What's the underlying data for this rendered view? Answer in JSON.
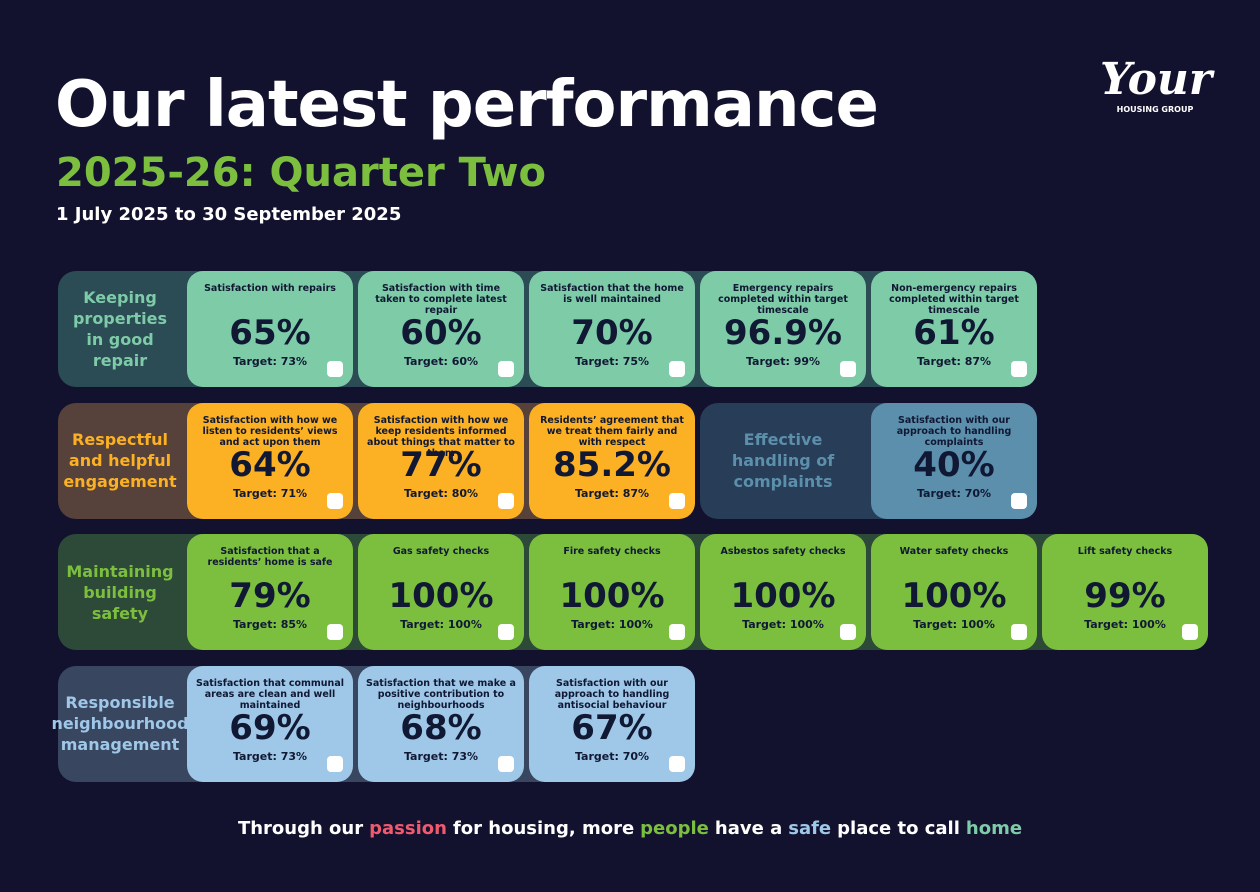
{
  "header": {
    "title": "Our latest performance",
    "subtitle": "2025-26: Quarter Two",
    "period": "1 July 2025 to 30 September 2025"
  },
  "logo": {
    "name": "Your",
    "tagline": "HOUSING GROUP"
  },
  "rows": [
    [
      {
        "label": "Keeping properties in good repair",
        "color": "#7ecba8",
        "panel": "#2b4b55",
        "cards": [
          {
            "title": "Satisfaction with repairs",
            "value": "65%",
            "target": "Target: 73%"
          },
          {
            "title": "Satisfaction with time taken to complete latest repair",
            "value": "60%",
            "target": "Target: 60%"
          },
          {
            "title": "Satisfaction that the home is well maintained",
            "value": "70%",
            "target": "Target: 75%"
          },
          {
            "title": "Emergency repairs completed within target timescale",
            "value": "96.9%",
            "target": "Target: 99%"
          },
          {
            "title": "Non-emergency repairs completed within target timescale",
            "value": "61%",
            "target": "Target: 87%"
          }
        ]
      }
    ],
    [
      {
        "label": "Respectful and helpful engagement",
        "color": "#fbb123",
        "panel": "#56423a",
        "cards": [
          {
            "title": "Satisfaction with how we listen to residents’ views and act upon them",
            "value": "64%",
            "target": "Target: 71%"
          },
          {
            "title": "Satisfaction with how we keep residents informed about things that matter to them",
            "value": "77%",
            "target": "Target: 80%"
          },
          {
            "title": "Residents’ agreement that we treat them fairly and with respect",
            "value": "85.2%",
            "target": "Target: 87%"
          }
        ]
      },
      {
        "label": "Effective handling of complaints",
        "color": "#5b8fab",
        "panel": "#283d58",
        "cards": [
          {
            "title": "Satisfaction with our approach to handling complaints",
            "value": "40%",
            "target": "Target: 70%"
          }
        ]
      }
    ],
    [
      {
        "label": "Maintaining building safety",
        "color": "#7cbf3f",
        "panel": "#2d4a38",
        "cards": [
          {
            "title": "Satisfaction that a residents’ home is safe",
            "value": "79%",
            "target": "Target: 85%"
          },
          {
            "title": "Gas safety checks",
            "value": "100%",
            "target": "Target: 100%"
          },
          {
            "title": "Fire safety checks",
            "value": "100%",
            "target": "Target: 100%"
          },
          {
            "title": "Asbestos safety checks",
            "value": "100%",
            "target": "Target: 100%"
          },
          {
            "title": "Water safety checks",
            "value": "100%",
            "target": "Target: 100%"
          },
          {
            "title": "Lift safety checks",
            "value": "99%",
            "target": "Target: 100%"
          }
        ]
      }
    ],
    [
      {
        "label": "Responsible neighbourhood management",
        "color": "#9fc7e8",
        "panel": "#394660",
        "cards": [
          {
            "title": "Satisfaction that communal areas are clean and well maintained",
            "value": "69%",
            "target": "Target: 73%"
          },
          {
            "title": "Satisfaction that we make a positive contribution to neighbourhoods",
            "value": "68%",
            "target": "Target: 73%"
          },
          {
            "title": "Satisfaction with our approach to handling antisocial behaviour",
            "value": "67%",
            "target": "Target: 70%"
          }
        ]
      }
    ]
  ],
  "footer": [
    {
      "text": "Through our",
      "color": "#ffffff"
    },
    {
      "text": "passion",
      "color": "#ef5a6f"
    },
    {
      "text": "for housing, more",
      "color": "#ffffff"
    },
    {
      "text": "people",
      "color": "#7cbf3f"
    },
    {
      "text": "have a",
      "color": "#ffffff"
    },
    {
      "text": "safe",
      "color": "#9fc7e8"
    },
    {
      "text": "place to call",
      "color": "#ffffff"
    },
    {
      "text": "home",
      "color": "#7ecba8"
    }
  ]
}
